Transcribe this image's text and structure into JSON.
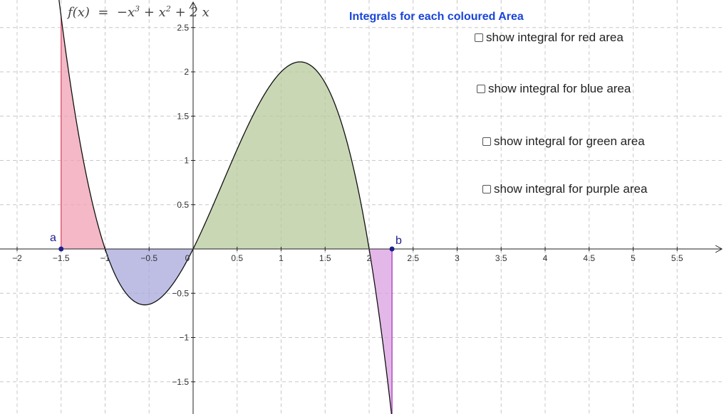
{
  "function_label": {
    "name": "f",
    "var": "x",
    "eq": "=",
    "t1": "−x",
    "e1": "3",
    "op1": "+",
    "t2": "x",
    "e2": "2",
    "op2": "+",
    "t3": "2 x"
  },
  "title": "Integrals for each coloured Area",
  "checkboxes": [
    {
      "label": "show integral for red area",
      "checked": false
    },
    {
      "label": "show integral for blue area",
      "checked": false
    },
    {
      "label": "show integral for green area",
      "checked": false
    },
    {
      "label": "show integral for purple area",
      "checked": false
    }
  ],
  "points": {
    "a_label": "a",
    "b_label": "b"
  },
  "chart_data": {
    "type": "area",
    "function": "-x^3 + x^2 + 2x",
    "xlim": [
      -2.1,
      5.95
    ],
    "ylim": [
      -1.85,
      2.8
    ],
    "grid": true,
    "x_ticks": [
      -2,
      -1.5,
      -1,
      -0.5,
      0,
      0.5,
      1,
      1.5,
      2,
      2.5,
      3,
      3.5,
      4,
      4.5,
      5,
      5.5
    ],
    "x_tick_labels": [
      "−2",
      "−1.5",
      "−1",
      "−0.5",
      "0",
      "0.5",
      "1",
      "1.5",
      "2",
      "2.5",
      "3",
      "3.5",
      "4",
      "4.5",
      "5",
      "5.5"
    ],
    "y_ticks": [
      -1.5,
      -1,
      -0.5,
      0.5,
      1,
      1.5,
      2,
      2.5
    ],
    "y_tick_labels": [
      "−1.5",
      "−1",
      "−0.5",
      "0.5",
      "1",
      "1.5",
      "2",
      "2.5"
    ],
    "a": -1.5,
    "b": 2.26,
    "regions": [
      {
        "name": "red",
        "from": -1.5,
        "to": -1,
        "color": "#f0a0b4"
      },
      {
        "name": "blue",
        "from": -1,
        "to": 0,
        "color": "#a8a8dc"
      },
      {
        "name": "green",
        "from": 0,
        "to": 2,
        "color": "#b7c99c"
      },
      {
        "name": "purple",
        "from": 2,
        "to": 2.26,
        "color": "#d9a0e0"
      }
    ],
    "region_edge_colors": {
      "red": "#e0607a",
      "purple": "#b050c0",
      "point": "#1d1d8c"
    }
  }
}
